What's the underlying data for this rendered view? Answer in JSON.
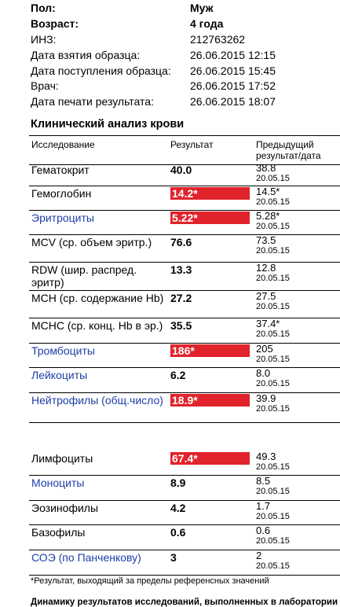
{
  "patient": [
    {
      "label": "Пол:",
      "value": "Муж",
      "bold": true
    },
    {
      "label": "Возраст:",
      "value": "4 года",
      "bold": true
    },
    {
      "label": "ИНЗ:",
      "value": "212763262",
      "bold": false
    },
    {
      "label": "Дата взятия образца:",
      "value": "26.06.2015 12:15",
      "bold": false
    },
    {
      "label": "Дата поступления образца:",
      "value": "26.06.2015 15:45",
      "bold": false
    },
    {
      "label": "Врач:",
      "value": "26.06.2015 17:52",
      "bold": false
    },
    {
      "label": "Дата печати результата:",
      "value": "26.06.2015 18:07",
      "bold": false
    }
  ],
  "section_title": "Клинический анализ крови",
  "table_header": {
    "study": "Исследование",
    "result": "Результат",
    "previous_line1": "Предыдущий",
    "previous_line2": "результат/дата"
  },
  "rows": [
    {
      "name": "Гематокрит",
      "result": "40.0",
      "flag": false,
      "link": false,
      "prev": "38.8",
      "prev_date": "20.05.15"
    },
    {
      "name": "Гемоглобин",
      "result": "14.2*",
      "flag": true,
      "link": false,
      "prev": "14.5*",
      "prev_date": "20.05.15"
    },
    {
      "name": "Эритроциты",
      "result": "5.22*",
      "flag": true,
      "link": true,
      "prev": "5.28*",
      "prev_date": "20.05.15"
    },
    {
      "name": "MCV (ср. объем эритр.)",
      "result": "76.6",
      "flag": false,
      "link": false,
      "prev": "73.5",
      "prev_date": "20.05.15"
    },
    {
      "name": "RDW (шир. распред. эритр)",
      "result": "13.3",
      "flag": false,
      "link": false,
      "prev": "12.8",
      "prev_date": "20.05.15"
    },
    {
      "name": "MCH (ср. содержание Hb)",
      "result": "27.2",
      "flag": false,
      "link": false,
      "prev": "27.5",
      "prev_date": "20.05.15"
    },
    {
      "name": "MCHC (ср. конц. Hb в эр.)",
      "result": "35.5",
      "flag": false,
      "link": false,
      "prev": "37.4*",
      "prev_date": "20.05.15"
    },
    {
      "name": "Тромбоциты",
      "result": "186*",
      "flag": true,
      "link": true,
      "prev": "205",
      "prev_date": "20.05.15"
    },
    {
      "name": "Лейкоциты",
      "result": "6.2",
      "flag": false,
      "link": true,
      "prev": "8.0",
      "prev_date": "20.05.15"
    },
    {
      "name": "Нейтрофилы (общ.число)",
      "result": "18.9*",
      "flag": true,
      "link": true,
      "prev": "39.9",
      "prev_date": "20.05.15"
    },
    {
      "name": "Лимфоциты",
      "result": "67.4*",
      "flag": true,
      "link": false,
      "prev": "49.3",
      "prev_date": "20.05.15"
    },
    {
      "name": "Моноциты",
      "result": "8.9",
      "flag": false,
      "link": true,
      "prev": "8.5",
      "prev_date": "20.05.15"
    },
    {
      "name": "Эозинофилы",
      "result": "4.2",
      "flag": false,
      "link": false,
      "prev": "1.7",
      "prev_date": "20.05.15"
    },
    {
      "name": "Базофилы",
      "result": "0.6",
      "flag": false,
      "link": false,
      "prev": "0.6",
      "prev_date": "20.05.15"
    },
    {
      "name": "СОЭ (по Панченкову)",
      "result": "3",
      "flag": false,
      "link": true,
      "prev": "2",
      "prev_date": "20.05.15"
    }
  ],
  "footnote": "*Результат, выходящий за пределы референсных значений",
  "bottom_text": "Динамику результатов исследований, выполненных в лаборатории"
}
